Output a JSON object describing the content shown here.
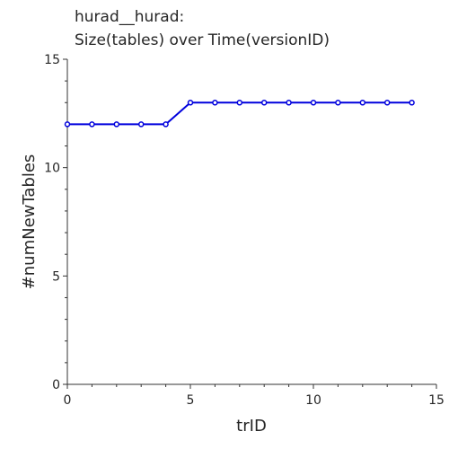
{
  "chart_data": {
    "type": "line",
    "title_lines": [
      "hurad__hurad:",
      "Size(tables) over Time(versionID)"
    ],
    "xlabel": "trID",
    "ylabel": "#numNewTables",
    "xlim": [
      0,
      15
    ],
    "ylim": [
      0,
      15
    ],
    "xticks": [
      0,
      5,
      10,
      15
    ],
    "yticks": [
      0,
      5,
      10,
      15
    ],
    "grid": false,
    "series": [
      {
        "color": "#0000dd",
        "x": [
          0,
          1,
          2,
          3,
          4,
          5,
          6,
          7,
          8,
          9,
          10,
          11,
          12,
          13,
          14
        ],
        "y": [
          12,
          12,
          12,
          12,
          12,
          13,
          13,
          13,
          13,
          13,
          13,
          13,
          13,
          13,
          13
        ]
      }
    ]
  }
}
